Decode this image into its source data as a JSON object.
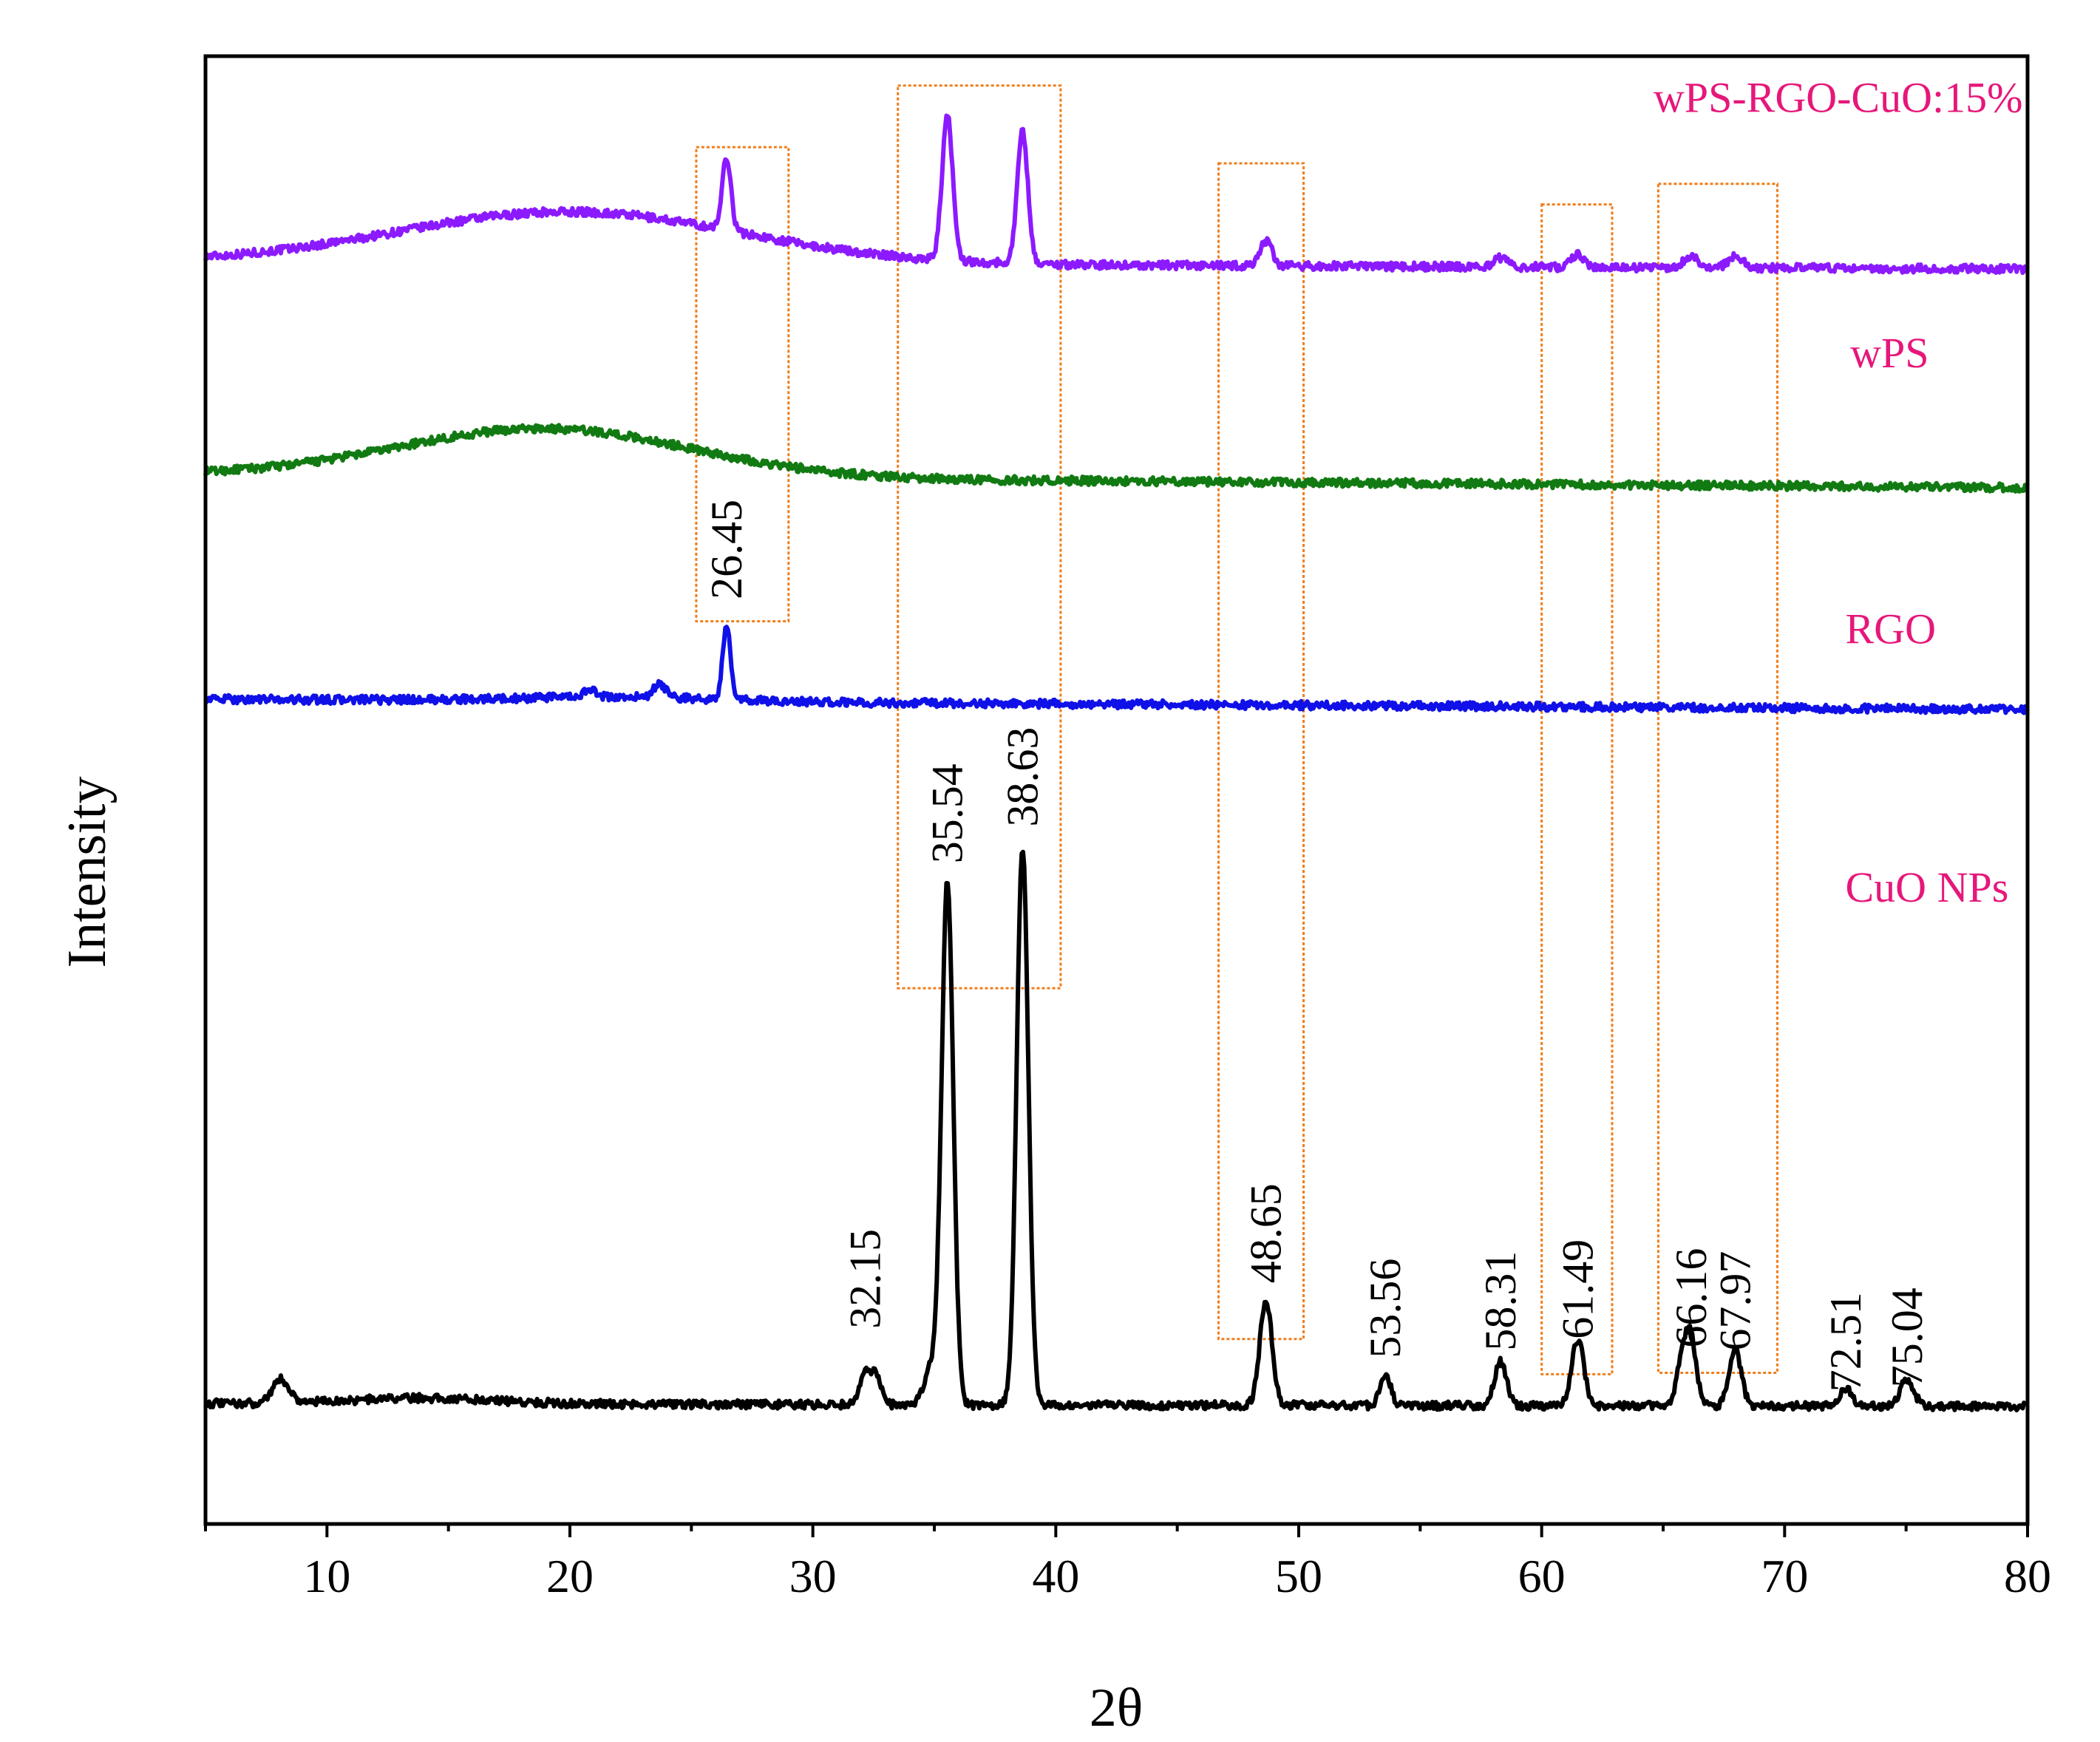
{
  "chart_data": {
    "type": "line",
    "title": "",
    "xlabel": "2θ",
    "ylabel": "Intensity",
    "xlim": [
      5,
      80
    ],
    "ylim": [
      0,
      100
    ],
    "xticks": [
      "10",
      "20",
      "30",
      "40",
      "50",
      "60",
      "70",
      "80"
    ],
    "xtick_values": [
      10,
      20,
      30,
      40,
      50,
      60,
      70,
      80
    ],
    "label_color": "#e6177a",
    "box_color": "#f07d1a",
    "series": [
      {
        "name": "wPS-RGO-CuO:15%",
        "color": "#8c1aff",
        "baseline": 86.0,
        "slope_end": 85.5,
        "hump": {
          "center": 20,
          "width": 7,
          "height": 3.5
        },
        "peaks": [
          {
            "x": 26.45,
            "h": 5.0,
            "w": 0.18
          },
          {
            "x": 35.54,
            "h": 9.8,
            "w": 0.22
          },
          {
            "x": 38.63,
            "h": 9.0,
            "w": 0.22
          },
          {
            "x": 48.65,
            "h": 1.7,
            "w": 0.25
          },
          {
            "x": 58.31,
            "h": 0.6,
            "w": 0.25
          },
          {
            "x": 61.49,
            "h": 0.9,
            "w": 0.25
          },
          {
            "x": 66.16,
            "h": 0.8,
            "w": 0.3
          },
          {
            "x": 67.97,
            "h": 0.8,
            "w": 0.3
          }
        ]
      },
      {
        "name": "wPS",
        "color": "#127a12",
        "baseline": 71.5,
        "slope_end": 70.6,
        "hump": {
          "center": 19,
          "width": 6,
          "height": 3.3
        },
        "peaks": []
      },
      {
        "name": "RGO",
        "color": "#1010e8",
        "baseline": 56.2,
        "slope_end": 55.5,
        "hump": {
          "center": 22,
          "width": 4,
          "height": 0.3
        },
        "peaks": [
          {
            "x": 26.45,
            "h": 5.0,
            "w": 0.16
          },
          {
            "x": 23.7,
            "h": 0.9,
            "w": 0.25
          },
          {
            "x": 20.8,
            "h": 0.6,
            "w": 0.2
          }
        ]
      },
      {
        "name": "CuO NPs",
        "color": "#000000",
        "baseline": 8.2,
        "slope_end": 8.0,
        "hump": {
          "center": 14,
          "width": 3,
          "height": 0.4
        },
        "peaks": [
          {
            "x": 8.1,
            "h": 1.6,
            "w": 0.35
          },
          {
            "x": 32.15,
            "h": 2.2,
            "w": 0.2
          },
          {
            "x": 32.6,
            "h": 2.0,
            "w": 0.2
          },
          {
            "x": 35.54,
            "h": 35.5,
            "w": 0.24
          },
          {
            "x": 34.9,
            "h": 2.5,
            "w": 0.3
          },
          {
            "x": 38.63,
            "h": 38.0,
            "w": 0.24
          },
          {
            "x": 48.65,
            "h": 7.2,
            "w": 0.25
          },
          {
            "x": 53.56,
            "h": 2.1,
            "w": 0.22
          },
          {
            "x": 58.31,
            "h": 3.0,
            "w": 0.25
          },
          {
            "x": 61.49,
            "h": 4.5,
            "w": 0.25
          },
          {
            "x": 65.8,
            "h": 3.0,
            "w": 0.25
          },
          {
            "x": 66.16,
            "h": 4.0,
            "w": 0.22
          },
          {
            "x": 67.97,
            "h": 3.8,
            "w": 0.25
          },
          {
            "x": 72.51,
            "h": 1.2,
            "w": 0.25
          },
          {
            "x": 75.04,
            "h": 1.8,
            "w": 0.28
          }
        ]
      }
    ],
    "peak_labels": [
      {
        "text": "26.45",
        "x": 26.45,
        "y": 63.0
      },
      {
        "text": "32.15",
        "x": 32.15,
        "y": 13.3
      },
      {
        "text": "35.54",
        "x": 35.54,
        "y": 45.0
      },
      {
        "text": "38.63",
        "x": 38.63,
        "y": 47.5
      },
      {
        "text": "48.65",
        "x": 48.65,
        "y": 16.4
      },
      {
        "text": "53.56",
        "x": 53.56,
        "y": 11.3
      },
      {
        "text": "58.31",
        "x": 58.31,
        "y": 11.8
      },
      {
        "text": "61.49",
        "x": 61.49,
        "y": 12.6
      },
      {
        "text": "66.16",
        "x": 66.16,
        "y": 12.0
      },
      {
        "text": "67.97",
        "x": 67.97,
        "y": 11.8
      },
      {
        "text": "72.51",
        "x": 72.51,
        "y": 9.0
      },
      {
        "text": "75.04",
        "x": 75.04,
        "y": 9.3
      }
    ],
    "series_labels": [
      {
        "text": "wPS-RGO-CuO:15%",
        "x": 79.8,
        "y": 96.2
      },
      {
        "text": "wPS",
        "x": 72.7,
        "y": 78.8
      },
      {
        "text": "RGO",
        "x": 72.5,
        "y": 60.0
      },
      {
        "text": "CuO NPs",
        "x": 72.5,
        "y": 42.4
      }
    ],
    "highlight_boxes": [
      {
        "x_range": [
          25.2,
          29.0
        ],
        "y_range": [
          61.5,
          93.8
        ]
      },
      {
        "x_range": [
          33.5,
          40.2
        ],
        "y_range": [
          36.5,
          98.0
        ]
      },
      {
        "x_range": [
          46.7,
          50.2
        ],
        "y_range": [
          12.6,
          92.7
        ]
      },
      {
        "x_range": [
          60.0,
          62.9
        ],
        "y_range": [
          10.2,
          89.9
        ]
      },
      {
        "x_range": [
          64.8,
          69.7
        ],
        "y_range": [
          10.3,
          91.3
        ]
      }
    ]
  }
}
